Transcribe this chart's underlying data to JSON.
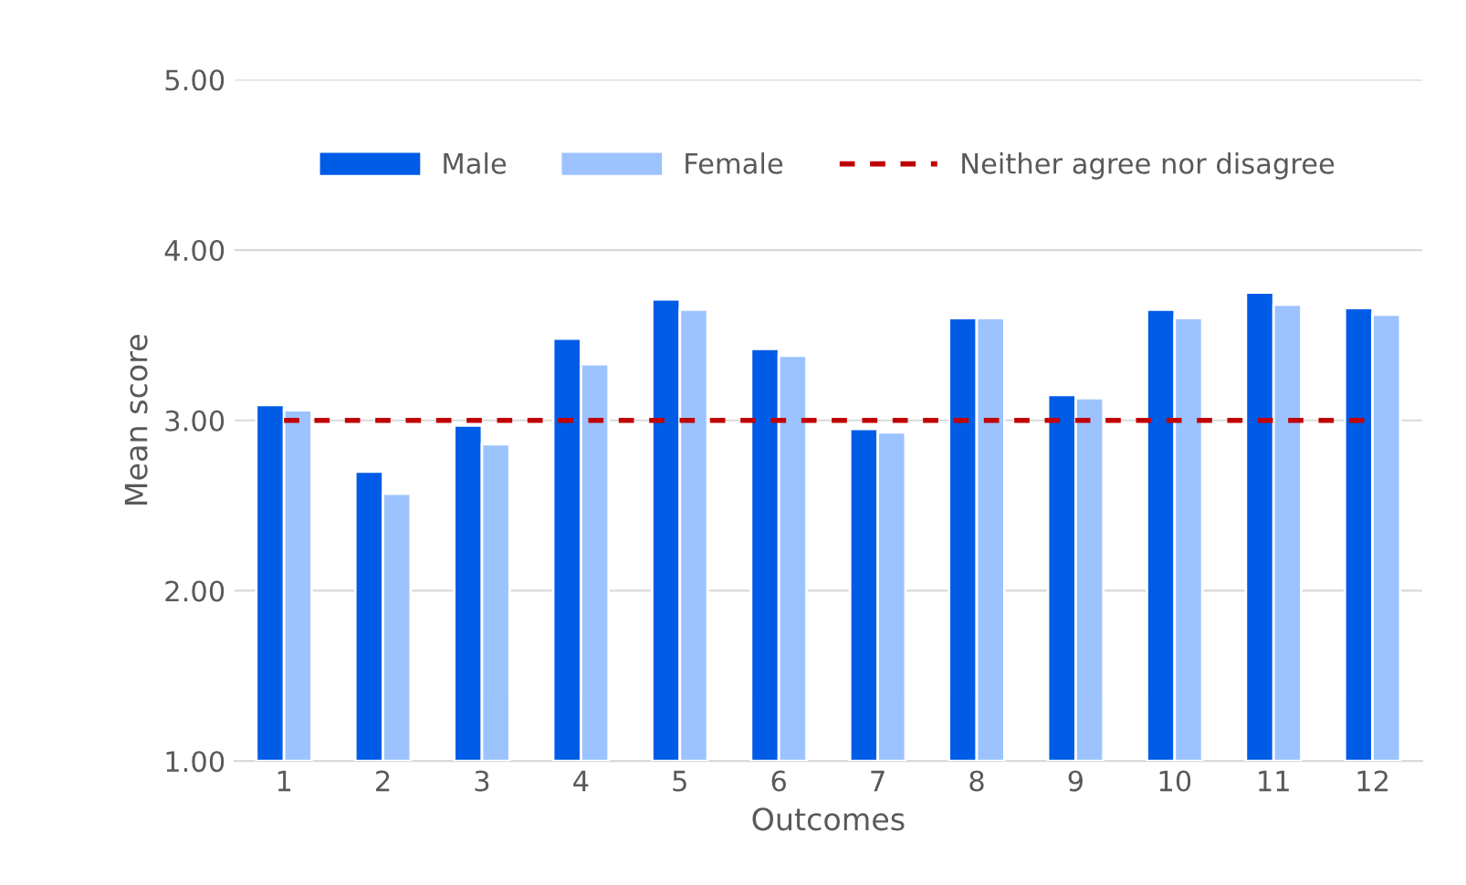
{
  "chart_data": {
    "type": "bar",
    "xlabel": "Outcomes",
    "ylabel": "Mean score",
    "categories": [
      "1",
      "2",
      "3",
      "4",
      "5",
      "6",
      "7",
      "8",
      "9",
      "10",
      "11",
      "12"
    ],
    "series": [
      {
        "name": "Male",
        "color": "#005ce6",
        "values": [
          3.09,
          2.7,
          2.97,
          3.48,
          3.71,
          3.42,
          2.95,
          3.6,
          3.15,
          3.65,
          3.75,
          3.66
        ]
      },
      {
        "name": "Female",
        "color": "#9dc3ff",
        "values": [
          3.06,
          2.57,
          2.86,
          3.33,
          3.65,
          3.38,
          2.93,
          3.6,
          3.13,
          3.6,
          3.68,
          3.62
        ]
      }
    ],
    "ylim": [
      1,
      5
    ],
    "yticks": [
      {
        "value": 1,
        "label": "1.00"
      },
      {
        "value": 2,
        "label": "2.00"
      },
      {
        "value": 3,
        "label": "3.00"
      },
      {
        "value": 4,
        "label": "4.00"
      },
      {
        "value": 5,
        "label": "5.00"
      }
    ],
    "ref_lines": [
      {
        "axis": "y",
        "value": 3,
        "label": "Neither agree nor disagree",
        "color": "#c00000",
        "line_style": "dashed"
      }
    ],
    "grid": "y",
    "legend": "top"
  }
}
